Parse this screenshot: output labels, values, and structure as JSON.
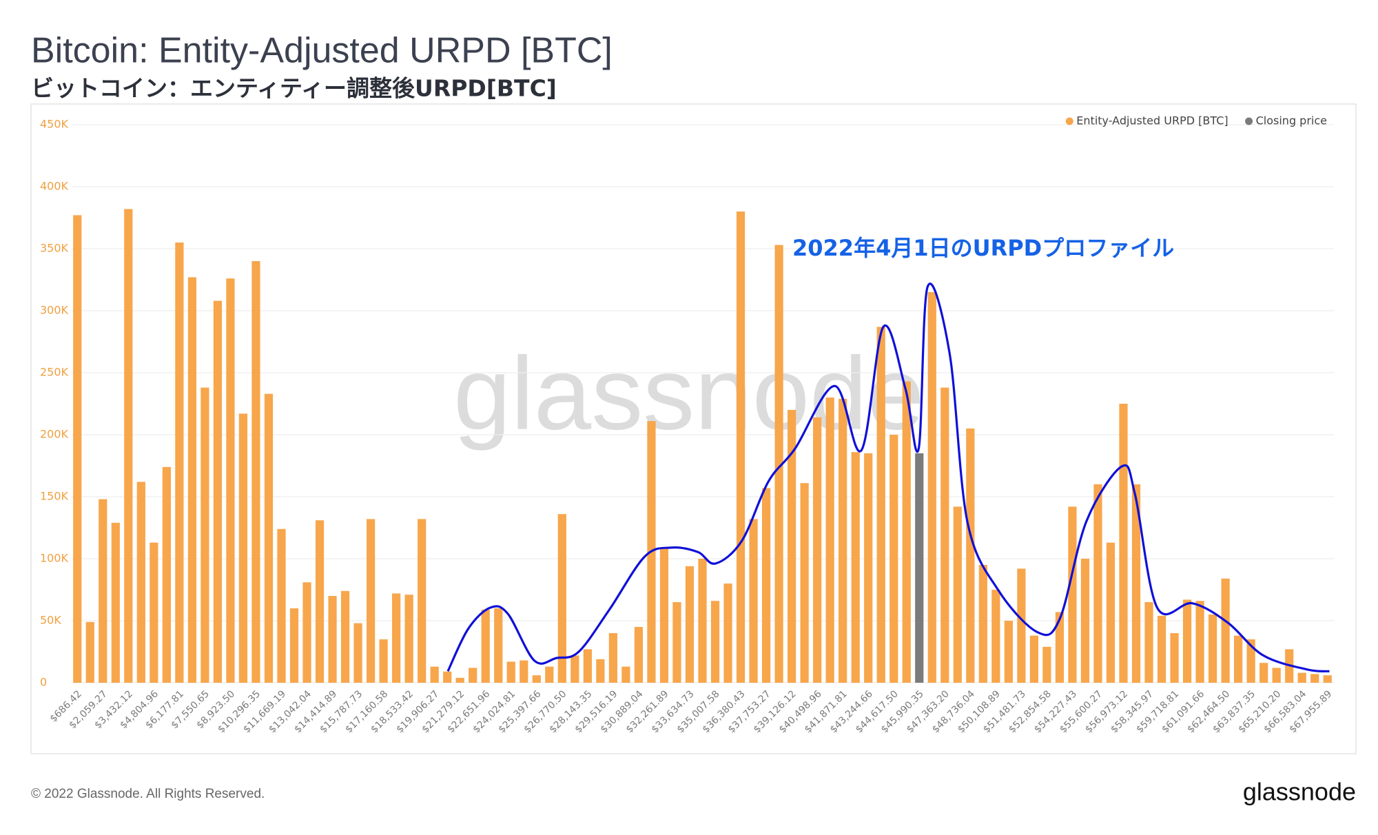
{
  "chart_data": {
    "type": "bar",
    "title": "Bitcoin: Entity-Adjusted URPD [BTC]",
    "subtitle": "ビットコイン：エンティティー調整後URPD[BTC]",
    "annotation": "2022年4月1日のURPDプロファイル",
    "watermark": "glassnode",
    "footer": "© 2022 Glassnode. All Rights Reserved.",
    "logo": "glassnode",
    "legend_position": "top-right",
    "grid": true,
    "categories": [
      "$686.42",
      null,
      "$2,059.27",
      null,
      "$3,432.12",
      null,
      "$4,804.96",
      null,
      "$6,177.81",
      null,
      "$7,550.65",
      null,
      "$8,923.50",
      null,
      "$10,296.35",
      null,
      "$11,669.19",
      null,
      "$13,042.04",
      null,
      "$14,414.89",
      null,
      "$15,787.73",
      null,
      "$17,160.58",
      null,
      "$18,533.42",
      null,
      "$19,906.27",
      null,
      "$21,279.12",
      null,
      "$22,651.96",
      null,
      "$24,024.81",
      null,
      "$25,397.66",
      null,
      "$26,770.50",
      null,
      "$28,143.35",
      null,
      "$29,516.19",
      null,
      "$30,889.04",
      null,
      "$32,261.89",
      null,
      "$33,634.73",
      null,
      "$35,007.58",
      null,
      "$36,380.43",
      null,
      "$37,753.27",
      null,
      "$39,126.12",
      null,
      "$40,498.96",
      null,
      "$41,871.81",
      null,
      "$43,244.66",
      null,
      "$44,617.50",
      null,
      "$45,990.35",
      null,
      "$47,363.20",
      null,
      "$48,736.04",
      null,
      "$50,108.89",
      null,
      "$51,481.73",
      null,
      "$52,854.58",
      null,
      "$54,227.43",
      null,
      "$55,600.27",
      null,
      "$56,973.12",
      null,
      "$58,345.97",
      null,
      "$59,718.81",
      null,
      "$61,091.66",
      null,
      "$62,464.50",
      null,
      "$63,837.35",
      null,
      "$65,210.20",
      null,
      "$66,583.04",
      null,
      "$67,955.89"
    ],
    "series": [
      {
        "name": "Entity-Adjusted URPD [BTC]",
        "color": "#f7a64c",
        "values": [
          377000,
          49000,
          148000,
          129000,
          382000,
          162000,
          113000,
          174000,
          355000,
          327000,
          238000,
          308000,
          326000,
          217000,
          340000,
          233000,
          124000,
          60000,
          81000,
          131000,
          70000,
          74000,
          48000,
          132000,
          35000,
          72000,
          71000,
          132000,
          13000,
          9000,
          4000,
          12000,
          59000,
          60000,
          17000,
          18000,
          6000,
          13000,
          136000,
          22000,
          27000,
          19000,
          40000,
          13000,
          45000,
          211000,
          108000,
          65000,
          94000,
          100000,
          66000,
          80000,
          380000,
          132000,
          157000,
          353000,
          220000,
          161000,
          214000,
          230000,
          229000,
          186000,
          185000,
          287000,
          200000,
          243000,
          null,
          315000,
          238000,
          142000,
          205000,
          95000,
          75000,
          50000,
          92000,
          38000,
          29000,
          57000,
          142000,
          100000,
          160000,
          113000,
          225000,
          160000,
          65000,
          54000,
          40000,
          67000,
          66000,
          55000,
          84000,
          38000,
          35000,
          16000,
          12000,
          27000,
          8000,
          7000,
          6000
        ]
      },
      {
        "name": "Closing price",
        "color": "#7b7b7b",
        "values": [
          null,
          null,
          null,
          null,
          null,
          null,
          null,
          null,
          null,
          null,
          null,
          null,
          null,
          null,
          null,
          null,
          null,
          null,
          null,
          null,
          null,
          null,
          null,
          null,
          null,
          null,
          null,
          null,
          null,
          null,
          null,
          null,
          null,
          null,
          null,
          null,
          null,
          null,
          null,
          null,
          null,
          null,
          null,
          null,
          null,
          null,
          null,
          null,
          null,
          null,
          null,
          null,
          null,
          null,
          null,
          null,
          null,
          null,
          null,
          null,
          null,
          null,
          null,
          null,
          null,
          null,
          185000,
          null,
          null,
          null,
          null,
          null,
          null,
          null,
          null,
          null,
          null,
          null,
          null,
          null,
          null,
          null,
          null,
          null,
          null,
          null,
          null,
          null,
          null,
          null,
          null,
          null,
          null,
          null,
          null,
          null,
          null,
          null,
          null
        ]
      }
    ],
    "ylim": [
      0,
      450000
    ],
    "yticks": [
      0,
      {
        "value": 50000,
        "label": "50K"
      },
      {
        "value": 100000,
        "label": "100K"
      },
      {
        "value": 150000,
        "label": "150K"
      },
      {
        "value": 200000,
        "label": "200K"
      },
      {
        "value": 250000,
        "label": "250K"
      },
      {
        "value": 300000,
        "label": "300K"
      },
      {
        "value": 350000,
        "label": "350K"
      },
      {
        "value": 400000,
        "label": "400K"
      },
      {
        "value": 450000,
        "label": "450K"
      }
    ]
  }
}
